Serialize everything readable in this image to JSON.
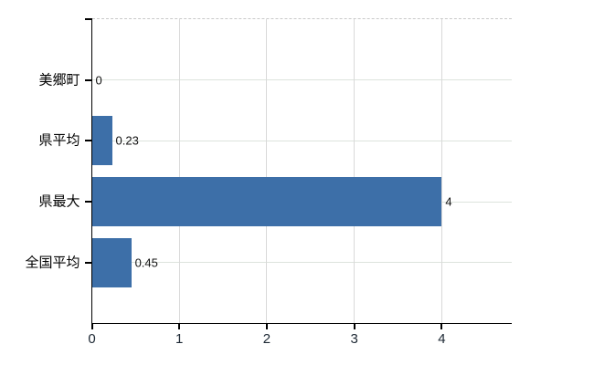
{
  "chart_data": {
    "type": "bar",
    "orientation": "horizontal",
    "title": "",
    "xlabel": "",
    "ylabel": "",
    "categories": [
      "美郷町",
      "県平均",
      "県最大",
      "全国平均"
    ],
    "values": [
      0,
      0.23,
      4,
      0.45
    ],
    "value_labels": [
      "0",
      "0.23",
      "4",
      "0.45"
    ],
    "xticks": [
      0,
      1,
      2,
      3,
      4
    ],
    "xtick_labels": [
      "0",
      "1",
      "2",
      "3",
      "4"
    ],
    "xlim": [
      0,
      4.8
    ],
    "grid": "on",
    "legend": "none",
    "colors": {
      "bar_fill": "#3d6fa8",
      "axis": "#000000",
      "grid_horizontal": "#dde3dd",
      "grid_vertical": "#d9d9d9",
      "plot_top_border": "#c9c9c9",
      "tick_label_text": "#1c2733",
      "value_label_text": "#111111",
      "category_label_text": "#000000",
      "background": "#ffffff"
    }
  }
}
